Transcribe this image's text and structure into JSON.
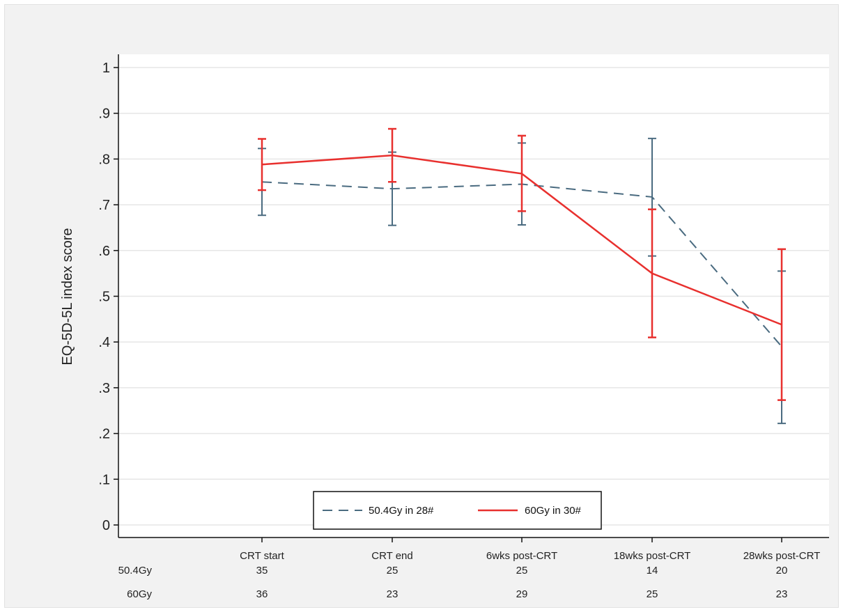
{
  "chart_data": {
    "type": "line",
    "title": "",
    "xlabel": "",
    "ylabel": "EQ-5D-5L index score",
    "ylim": [
      0,
      1
    ],
    "yticks": [
      0,
      0.1,
      0.2,
      0.3,
      0.4,
      0.5,
      0.6,
      0.7,
      0.8,
      0.9,
      1
    ],
    "ytick_labels": [
      "0",
      ".1",
      ".2",
      ".3",
      ".4",
      ".5",
      ".6",
      ".7",
      ".8",
      ".9",
      "1"
    ],
    "grid": true,
    "legend_position": "bottom-center",
    "categories": [
      "CRT start",
      "CRT end",
      "6wks post-CRT",
      "18wks post-CRT",
      "28wks post-CRT"
    ],
    "series": [
      {
        "name": "50.4Gy in 28#",
        "color": "#4a6b80",
        "line_style": "dashed",
        "values": [
          0.75,
          0.735,
          0.745,
          0.717,
          0.39
        ],
        "ci_lower": [
          0.677,
          0.655,
          0.656,
          0.588,
          0.222
        ],
        "ci_upper": [
          0.823,
          0.815,
          0.835,
          0.845,
          0.555
        ]
      },
      {
        "name": "60Gy in 30#",
        "color": "#e8302e",
        "line_style": "solid",
        "values": [
          0.788,
          0.808,
          0.768,
          0.55,
          0.438
        ],
        "ci_lower": [
          0.732,
          0.75,
          0.686,
          0.41,
          0.273
        ],
        "ci_upper": [
          0.844,
          0.866,
          0.851,
          0.69,
          0.603
        ]
      }
    ],
    "n_table": {
      "rows": [
        {
          "label": "50.4Gy",
          "counts": [
            "35",
            "25",
            "25",
            "14",
            "20"
          ]
        },
        {
          "label": "60Gy",
          "counts": [
            "36",
            "23",
            "29",
            "25",
            "23"
          ]
        }
      ]
    }
  }
}
